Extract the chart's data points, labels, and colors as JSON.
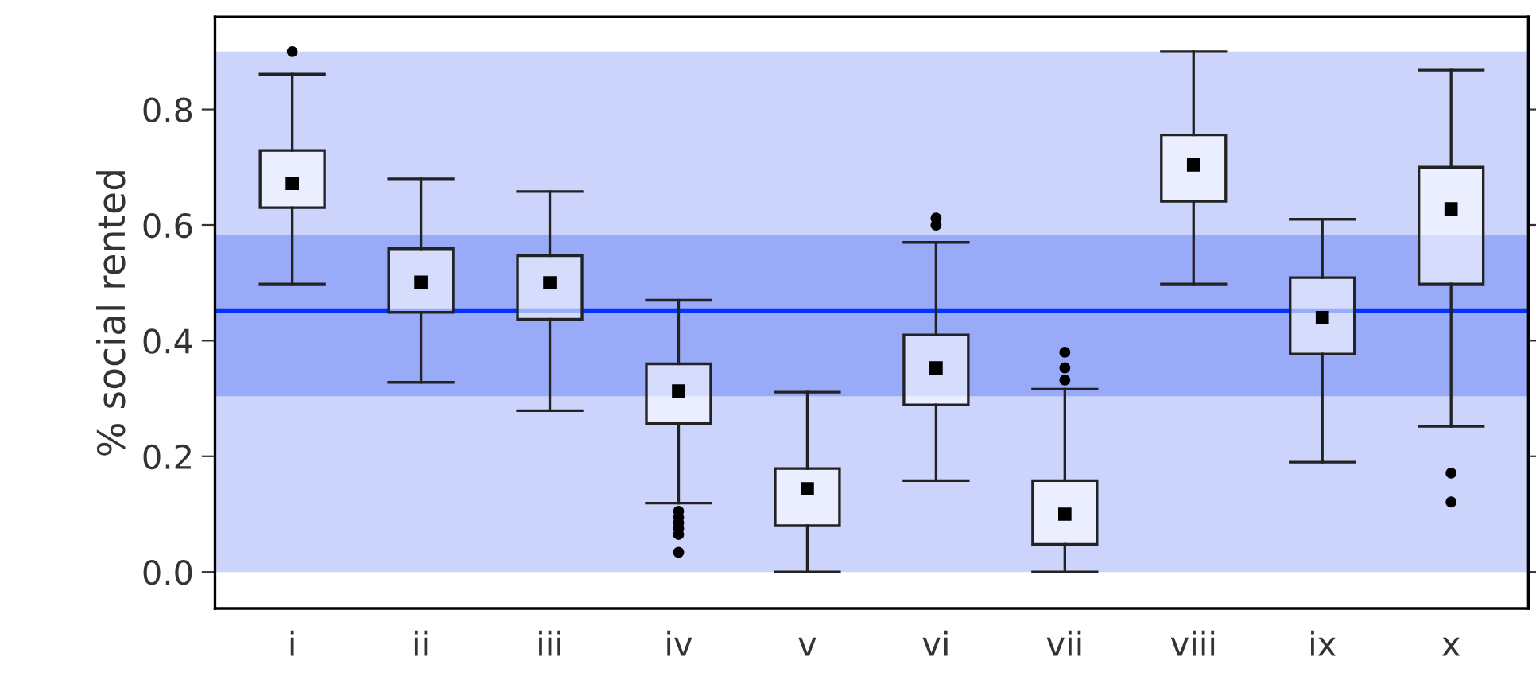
{
  "chart_data": {
    "type": "box",
    "ylabel": "% social rented",
    "categories": [
      "i",
      "ii",
      "iii",
      "iv",
      "v",
      "vi",
      "vii",
      "viii",
      "ix",
      "x"
    ],
    "boxes": [
      {
        "low": 0.498,
        "q1": 0.63,
        "median": 0.672,
        "q3": 0.729,
        "high": 0.861,
        "outliers": [
          0.9
        ]
      },
      {
        "low": 0.328,
        "q1": 0.449,
        "median": 0.501,
        "q3": 0.559,
        "high": 0.68
      },
      {
        "low": 0.279,
        "q1": 0.437,
        "median": 0.5,
        "q3": 0.547,
        "high": 0.658
      },
      {
        "low": 0.119,
        "q1": 0.257,
        "median": 0.313,
        "q3": 0.36,
        "high": 0.47,
        "outliers": [
          0.105,
          0.095,
          0.085,
          0.075,
          0.065,
          0.034
        ]
      },
      {
        "low": 0.0,
        "q1": 0.08,
        "median": 0.144,
        "q3": 0.179,
        "high": 0.311
      },
      {
        "low": 0.158,
        "q1": 0.289,
        "median": 0.353,
        "q3": 0.41,
        "high": 0.57,
        "outliers": [
          0.6,
          0.612
        ]
      },
      {
        "low": 0.0,
        "q1": 0.048,
        "median": 0.1,
        "q3": 0.158,
        "high": 0.316,
        "outliers": [
          0.332,
          0.353,
          0.38
        ]
      },
      {
        "low": 0.498,
        "q1": 0.641,
        "median": 0.704,
        "q3": 0.756,
        "high": 0.9
      },
      {
        "low": 0.19,
        "q1": 0.377,
        "median": 0.44,
        "q3": 0.509,
        "high": 0.61
      },
      {
        "low": 0.252,
        "q1": 0.498,
        "median": 0.628,
        "q3": 0.7,
        "high": 0.868,
        "outliers": [
          0.171,
          0.121
        ]
      }
    ],
    "ylim": [
      -0.063,
      0.96
    ],
    "yticks": [
      {
        "value": 0,
        "label": "0.0"
      },
      0.2,
      0.4,
      0.6,
      0.8
    ],
    "bands": [
      {
        "axis": "y",
        "from": 0,
        "to": 0.9,
        "color": "#ccd4fc"
      },
      {
        "axis": "y",
        "from": 0.304,
        "to": 0.582,
        "color": "#99aaf8"
      }
    ],
    "ref_lines": [
      {
        "axis": "y",
        "value": 0.452,
        "color": "#0033ff",
        "line_style": "solid"
      }
    ],
    "grid": false,
    "legend": false
  }
}
